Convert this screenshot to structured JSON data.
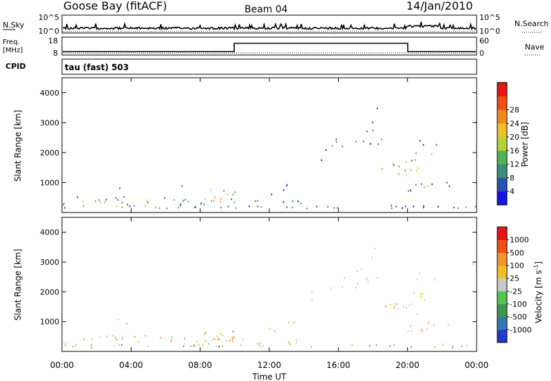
{
  "header": {
    "station": "Goose Bay (fitACF)",
    "beam": "Beam 04",
    "date": "14/Jan/2010"
  },
  "nsky_panel": {
    "left_label": "N.Sky",
    "left_ticks": [
      "10^5",
      "10^0"
    ],
    "right_label": "N.Search",
    "right_ticks": [
      "10^5",
      "10^0"
    ]
  },
  "freq_panel": {
    "label_top": "Freq.",
    "label_bottom": "[MHz]",
    "left_ticks": [
      "18",
      "8"
    ],
    "right_label": "Nave",
    "right_ticks": [
      "60",
      "0"
    ],
    "cpid_label": "CPID"
  },
  "mode_label": "tau (fast) 503",
  "chart_data": [
    {
      "type": "heatmap",
      "title": "",
      "ylabel": "Slant Range [km]",
      "xlabel": "",
      "y_ticks": [
        "1000",
        "2000",
        "3000",
        "4000"
      ],
      "x_ticks": [
        "00:00",
        "04:00",
        "08:00",
        "12:00",
        "16:00",
        "20:00",
        "00:00"
      ],
      "colorbar_label": "Power [dB]",
      "colorbar_ticks": [
        "4",
        "8",
        "12",
        "16",
        "20",
        "24",
        "28"
      ],
      "colors": [
        "#1414e6",
        "#2850b4",
        "#3c8c78",
        "#50b450",
        "#b4d232",
        "#f0be28",
        "#f08c1e",
        "#f05014",
        "#e61414"
      ]
    },
    {
      "type": "heatmap",
      "title": "",
      "ylabel": "Slant Range [km]",
      "xlabel": "Time UT",
      "y_ticks": [
        "1000",
        "2000",
        "3000",
        "4000"
      ],
      "x_ticks": [
        "00:00",
        "04:00",
        "08:00",
        "12:00",
        "16:00",
        "20:00",
        "00:00"
      ],
      "colorbar_label": "Velocity [m s",
      "colorbar_label_sup": "-1",
      "colorbar_label_end": "]",
      "colorbar_ticks": [
        "1000",
        "500",
        "100",
        "25",
        "-25",
        "-100",
        "-500",
        "-1000"
      ],
      "colors": [
        "#1e3cc8",
        "#3278b4",
        "#3c9650",
        "#50c850",
        "#c8c8c8",
        "#f0be28",
        "#f09628",
        "#f05014",
        "#e61414"
      ]
    }
  ]
}
